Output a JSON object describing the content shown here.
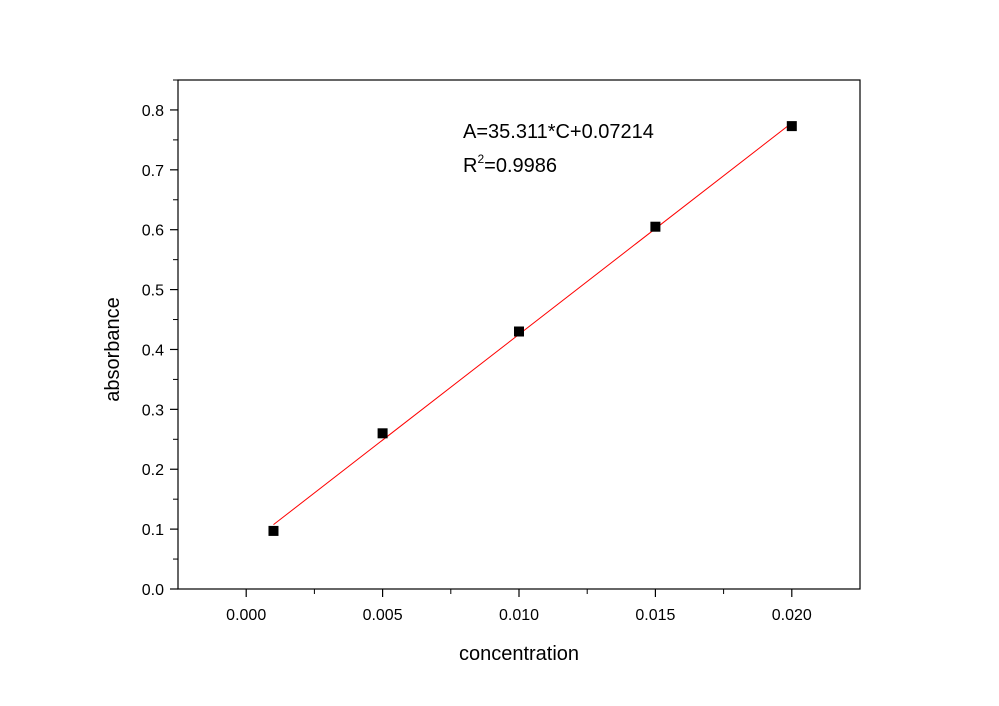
{
  "chart_data": {
    "type": "scatter",
    "xlabel": "concentration",
    "ylabel": "absorbance",
    "xlim": [
      -0.0025,
      0.0225
    ],
    "ylim": [
      0,
      0.85
    ],
    "x_ticks": [
      "0.000",
      "0.005",
      "0.010",
      "0.015",
      "0.020"
    ],
    "y_ticks": [
      "0.0",
      "0.1",
      "0.2",
      "0.3",
      "0.4",
      "0.5",
      "0.6",
      "0.7",
      "0.8"
    ],
    "grid": false,
    "colors": {
      "points": "#000000",
      "fit_line": "#ff0000",
      "axes": "#000000"
    },
    "series": [
      {
        "x": [
          0.001,
          0.005,
          0.01,
          0.015,
          0.02
        ],
        "y": [
          0.097,
          0.26,
          0.43,
          0.605,
          0.773
        ]
      }
    ],
    "fit": {
      "slope": 35.311,
      "intercept": 0.07214,
      "x_range": [
        0.001,
        0.02
      ]
    },
    "annotations": {
      "equation": "A=35.311*C+0.07214",
      "r2_prefix": "R",
      "r2_sup": "2",
      "r2_value": "=0.9986"
    }
  }
}
